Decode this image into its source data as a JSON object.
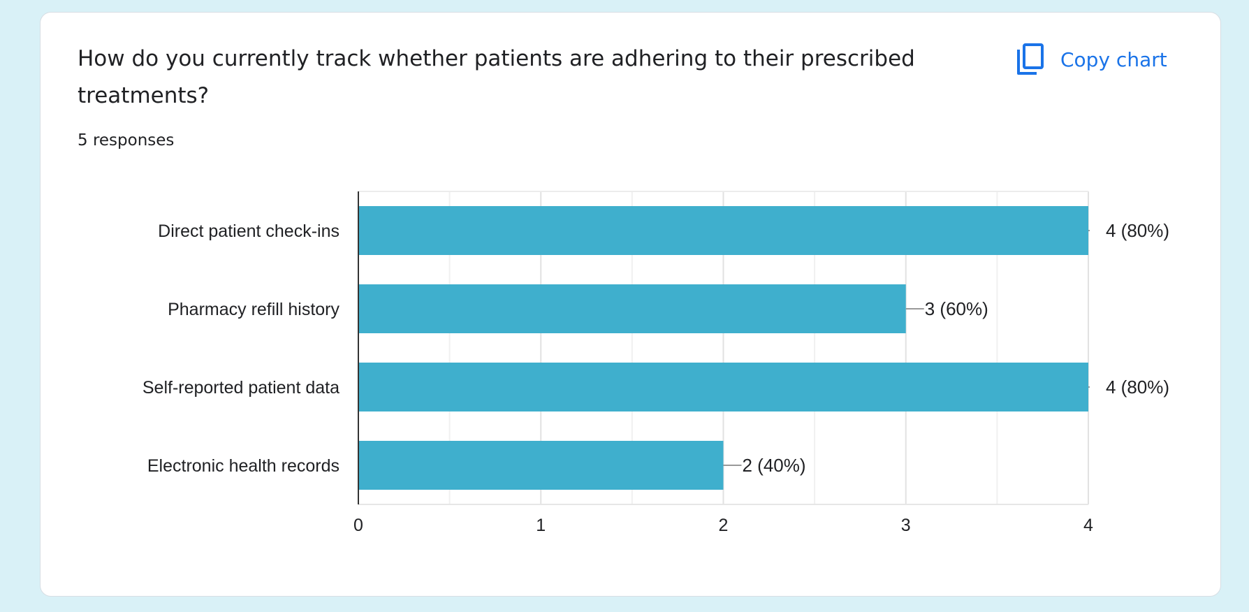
{
  "question": {
    "title": "How do you currently track whether patients are adhering to their prescribed treatments?",
    "responses": "5 responses"
  },
  "toolbar": {
    "copy_label": "Copy chart",
    "copy_icon": "copy-content-icon"
  },
  "colors": {
    "bar": "#3fafcd",
    "accent": "#1a73e8",
    "background": "#d9f1f7"
  },
  "chart_data": {
    "type": "bar",
    "orientation": "horizontal",
    "categories": [
      "Direct patient check-ins",
      "Pharmacy refill history",
      "Self-reported patient data",
      "Electronic health records"
    ],
    "values": [
      4,
      3,
      4,
      2
    ],
    "data_labels": [
      "4 (80%)",
      "3 (60%)",
      "4 (80%)",
      "2 (40%)"
    ],
    "xlim": [
      0,
      4
    ],
    "xticks": [
      "0",
      "1",
      "2",
      "3",
      "4"
    ],
    "grid": true
  }
}
